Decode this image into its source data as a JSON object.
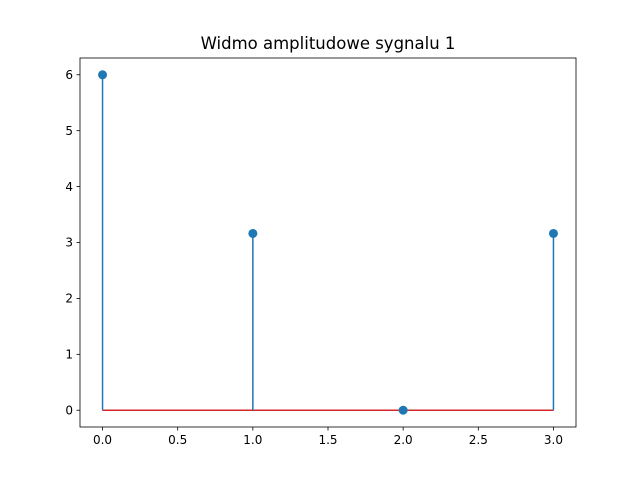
{
  "chart_data": {
    "type": "stem",
    "title": "Widmo amplitudowe sygnalu 1",
    "xlabel": "",
    "ylabel": "",
    "x": [
      0,
      1,
      2,
      3
    ],
    "values": [
      6.0,
      3.162,
      0.0,
      3.162
    ],
    "baseline": 0,
    "xlim": [
      -0.15,
      3.15
    ],
    "ylim": [
      -0.3,
      6.3
    ],
    "x_ticks": [
      0,
      0.5,
      1,
      1.5,
      2,
      2.5,
      3
    ],
    "x_tick_labels": [
      "0.0",
      "0.5",
      "1.0",
      "1.5",
      "2.0",
      "2.5",
      "3.0"
    ],
    "y_ticks": [
      0,
      1,
      2,
      3,
      4,
      5,
      6
    ],
    "y_tick_labels": [
      "0",
      "1",
      "2",
      "3",
      "4",
      "5",
      "6"
    ],
    "grid": false,
    "legend": "none",
    "colors": {
      "stem": "#1f77b4",
      "marker": "#1f77b4",
      "baseline": "#d62728",
      "axes": "#000000"
    }
  }
}
